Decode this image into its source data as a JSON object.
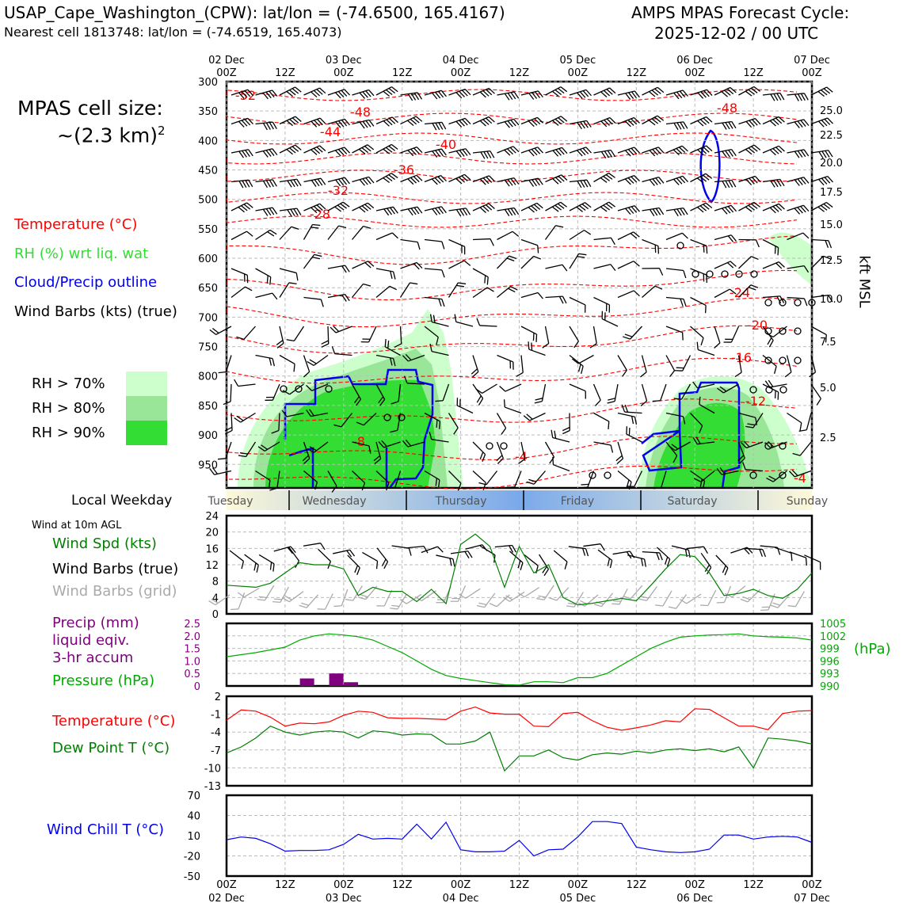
{
  "header": {
    "station_line": "USAP_Cape_Washington_(CPW): lat/lon = (-74.6500, 165.4167)",
    "cell_line": "Nearest cell 1813748: lat/lon = (-74.6519, 165.4073)",
    "model_line": "AMPS MPAS Forecast Cycle:",
    "cycle_line": "2025-12-02 / 00 UTC"
  },
  "legend": {
    "cell_size_label": "MPAS cell size:",
    "cell_size_value": "~(2.3 km)",
    "cell_size_exp": "2",
    "temperature": "Temperature (°C)",
    "rh": "RH (%) wrt liq. wat",
    "cloud": "Cloud/Precip outline",
    "wind": "Wind Barbs (kts) (true)",
    "rh70": "RH > 70%",
    "rh80": "RH > 80%",
    "rh90": "RH > 90%",
    "local_weekday": "Local Weekday",
    "wind10m": "Wind at 10m AGL",
    "wind_spd": "Wind Spd (kts)",
    "wind_barbs_true": "Wind Barbs (true)",
    "wind_barbs_grid": "Wind Barbs (grid)",
    "precip1": "Precip (mm)",
    "precip2": "liquid eqiv.",
    "precip3": "3-hr accum",
    "pressure": "Pressure (hPa)",
    "temp2": "Temperature (°C)",
    "dewpoint": "Dew Point T (°C)",
    "windchill": "Wind Chill T (°C)",
    "hpa_unit": "(hPa)",
    "kft_label": "kft MSL"
  },
  "colors": {
    "temp": "#ff0000",
    "rh_text": "#33cc33",
    "cloud": "#0000ee",
    "rh70": "#ccffcc",
    "rh80": "#99e699",
    "rh90": "#33dd33",
    "wind_green": "#008000",
    "precip": "#800080",
    "pressure": "#00aa00",
    "windchill": "#0000ee",
    "grey": "#aaaaaa"
  },
  "time_axis": {
    "top_dates": [
      "02 Dec",
      "",
      "03 Dec",
      "",
      "04 Dec",
      "",
      "05 Dec",
      "",
      "06 Dec",
      "",
      "07 Dec"
    ],
    "top_hours": [
      "00Z",
      "12Z",
      "00Z",
      "12Z",
      "00Z",
      "12Z",
      "00Z",
      "12Z",
      "00Z",
      "12Z",
      "00Z"
    ],
    "bottom_hours": [
      "00Z",
      "12Z",
      "00Z",
      "12Z",
      "00Z",
      "12Z",
      "00Z",
      "12Z",
      "00Z",
      "12Z",
      "00Z"
    ],
    "bottom_dates": [
      "02 Dec",
      "",
      "03 Dec",
      "",
      "04 Dec",
      "",
      "05 Dec",
      "",
      "06 Dec",
      "",
      "07 Dec"
    ]
  },
  "weekdays": [
    "Tuesday",
    "Wednesday",
    "Thursday",
    "Friday",
    "Saturday",
    "Sunday"
  ],
  "chart_data": [
    {
      "type": "heatmap",
      "name": "cross-section",
      "pressure_levels_hpa": [
        "300",
        "350",
        "400",
        "450",
        "500",
        "550",
        "600",
        "650",
        "700",
        "750",
        "800",
        "850",
        "900",
        "950"
      ],
      "height_kft": [
        "25.0",
        "22.5",
        "20.0",
        "17.5",
        "15.0",
        "12.5",
        "10.0",
        "7.5",
        "5.0",
        "2.5"
      ],
      "temperature_contour_labels": [
        "-52",
        "-48",
        "-48",
        "-44",
        "-40",
        "-36",
        "-32",
        "-28",
        "-24",
        "-20",
        "-16",
        "-12",
        "-8",
        "-4",
        "-4"
      ],
      "ylim_hpa": [
        300,
        990
      ],
      "x_hours": [
        0,
        120
      ]
    },
    {
      "type": "line",
      "name": "wind10m",
      "yticks": [
        "0",
        "4",
        "8",
        "12",
        "16",
        "20",
        "24"
      ],
      "ylim": [
        0,
        24
      ],
      "x_hours": [
        0,
        6,
        9,
        12,
        15,
        18,
        21,
        24,
        27,
        30,
        33,
        36,
        39,
        42,
        45,
        48,
        51,
        54,
        57,
        60,
        63,
        66,
        69,
        72,
        75,
        78,
        81,
        84,
        87,
        90,
        93,
        96,
        99,
        102,
        105,
        108,
        111,
        114,
        117,
        120
      ],
      "values": [
        7,
        6.5,
        7.5,
        10,
        12.5,
        12,
        12,
        11,
        4.5,
        6.5,
        5.5,
        5.5,
        3,
        6,
        2.5,
        17,
        19.5,
        16.5,
        6.5,
        16.5,
        10,
        12,
        4,
        2.2,
        2.6,
        3.2,
        3.8,
        3.2,
        7,
        11,
        14.5,
        14,
        10,
        4.5,
        5,
        6,
        4.5,
        3.8,
        6,
        10
      ]
    },
    {
      "type": "bar",
      "name": "precip",
      "yticks": [
        "0",
        "0.5",
        "1.0",
        "1.5",
        "2.0",
        "2.5"
      ],
      "ylim": [
        0,
        2.5
      ],
      "x_hours": [
        16.5,
        22.5,
        25.5
      ],
      "values": [
        0.3,
        0.5,
        0.15
      ]
    },
    {
      "type": "line",
      "name": "pressure",
      "yticks": [
        "990",
        "993",
        "996",
        "999",
        "1002",
        "1005"
      ],
      "ylim": [
        990,
        1005
      ],
      "x_hours": [
        0,
        6,
        12,
        15,
        18,
        21,
        24,
        27,
        30,
        33,
        36,
        39,
        42,
        45,
        48,
        51,
        54,
        57,
        60,
        63,
        66,
        69,
        72,
        75,
        78,
        81,
        84,
        87,
        90,
        93,
        96,
        99,
        102,
        105,
        108,
        111,
        114,
        117,
        120
      ],
      "values": [
        997,
        998,
        999.3,
        1001,
        1002,
        1002.5,
        1002.2,
        1001.8,
        1001,
        999.5,
        998,
        996,
        994,
        992.5,
        991.8,
        991.3,
        990.8,
        990.3,
        990.2,
        991,
        991,
        990.8,
        992,
        992,
        993,
        995,
        997,
        999,
        1000.5,
        1001.7,
        1002,
        1002.2,
        1002.3,
        1002.5,
        1002,
        1001.8,
        1001.7,
        1001.5,
        1001
      ]
    },
    {
      "type": "line",
      "name": "temp_dewpoint",
      "yticks": [
        "-13",
        "-10",
        "-7",
        "-4",
        "-1",
        "2"
      ],
      "ylim": [
        -13,
        2
      ],
      "x_hours": [
        0,
        3,
        6,
        9,
        12,
        15,
        18,
        21,
        24,
        27,
        30,
        33,
        36,
        39,
        42,
        45,
        48,
        51,
        54,
        57,
        60,
        63,
        66,
        69,
        72,
        75,
        78,
        81,
        84,
        87,
        90,
        93,
        96,
        99,
        102,
        105,
        108,
        111,
        114,
        117,
        120
      ],
      "series": [
        {
          "values": [
            -2,
            -0.3,
            -0.5,
            -1.5,
            -3,
            -2.5,
            -2.6,
            -2.3,
            -1.2,
            -0.5,
            -0.7,
            -1.6,
            -1.7,
            -1.7,
            -1.8,
            -1.9,
            -0.5,
            0.2,
            -0.8,
            -1.0,
            -1.0,
            -3,
            -3.1,
            -0.9,
            -0.7,
            -2.1,
            -3.2,
            -3.7,
            -3.3,
            -2.8,
            -2.1,
            -2.3,
            -0.1,
            -0.2,
            -1.6,
            -3,
            -3,
            -3.6,
            -0.9,
            -0.5,
            -0.4
          ]
        },
        {
          "values": [
            -7.5,
            -6.5,
            -5,
            -3,
            -4,
            -4.5,
            -4,
            -3.8,
            -4,
            -5,
            -3.8,
            -4,
            -4.5,
            -4.3,
            -4.4,
            -6,
            -6,
            -5.5,
            -4,
            -10.5,
            -8,
            -8,
            -7,
            -8.3,
            -8.7,
            -7.8,
            -7.5,
            -7.7,
            -7.2,
            -7.5,
            -7,
            -6.8,
            -7.1,
            -6.8,
            -7.3,
            -6.5,
            -10,
            -5,
            -5.2,
            -5.5,
            -6
          ]
        }
      ]
    },
    {
      "type": "line",
      "name": "windchill",
      "yticks": [
        "-50",
        "-20",
        "10",
        "40",
        "70"
      ],
      "ylim": [
        -50,
        70
      ],
      "x_hours": [
        0,
        3,
        6,
        9,
        12,
        15,
        18,
        21,
        24,
        27,
        30,
        33,
        36,
        39,
        42,
        45,
        48,
        51,
        54,
        57,
        60,
        63,
        66,
        69,
        72,
        75,
        78,
        81,
        84,
        87,
        90,
        93,
        96,
        99,
        102,
        105,
        108,
        111,
        114,
        117,
        120
      ],
      "values": [
        4,
        8,
        6,
        -2,
        -13,
        -12,
        -12,
        -11,
        -3,
        12,
        5,
        6,
        5,
        27,
        5,
        30,
        -11,
        -14,
        -14,
        -13,
        3,
        -20,
        -11,
        -10,
        8,
        31,
        31,
        28,
        -7,
        -11,
        -14,
        -15,
        -14,
        -10,
        11,
        11,
        5,
        8,
        9,
        8,
        0
      ]
    }
  ]
}
